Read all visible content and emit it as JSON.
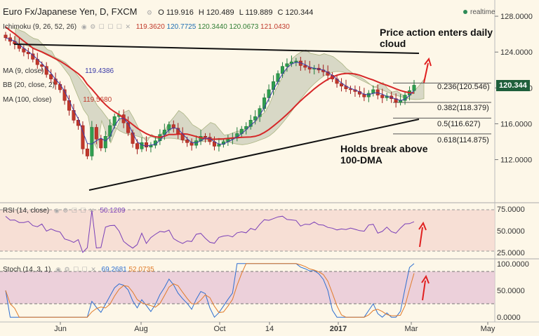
{
  "header": {
    "symbol": "Euro Fx/Japanese Yen, D, FXCM",
    "ohlc": [
      "119.916",
      "120.489",
      "119.889",
      "120.344"
    ],
    "realtime": "realtime"
  },
  "indicators": {
    "ichimoku": {
      "label": "Ichimoku (9, 26, 52, 26)",
      "values": [
        "119.3620",
        "120.7725",
        "120.3440",
        "120.0673",
        "121.0430"
      ]
    },
    "ma_fast": {
      "label": "MA (9, close)",
      "value": "119.4386"
    },
    "bb": {
      "label": "BB (20, close, 2)"
    },
    "ma_100": {
      "label": "MA (100, close)",
      "value": "119.5680"
    },
    "rsi": {
      "label": "RSI (14, close)",
      "value": "50.1209"
    },
    "stoch": {
      "label": "Stoch (14, 3, 1)",
      "k": "69.2681",
      "d": "52.0735"
    }
  },
  "annotations": {
    "top": [
      "Price action enters daily",
      "cloud"
    ],
    "bottom": [
      "Holds break above",
      "100-DMA"
    ]
  },
  "fib_levels": [
    {
      "label": "0.236(120.546)",
      "value": 120.546
    },
    {
      "label": "0.382(118.379)",
      "value": 118.379
    },
    {
      "label": "0.5(116.627)",
      "value": 116.627
    },
    {
      "label": "0.618(114.875)",
      "value": 114.875
    }
  ],
  "last_price": "120.344",
  "colors": {
    "ma100": "#d62728",
    "ma_fast": "#3a3aa8",
    "cloud": "#c9cbb8",
    "rsi": "#7a3fb8",
    "stoch_k": "#2f6fd1",
    "stoch_d": "#e07b2a",
    "up": "#1f7a3a",
    "down": "#a11b1b",
    "price_tag": "#1f5f3b",
    "arrow": "#e02020"
  },
  "chart_data": {
    "type": "candlestick",
    "x_ticks": [
      "Jun",
      "Aug",
      "Oct",
      "14",
      "2017",
      "Mar",
      "May"
    ],
    "price_axis": {
      "ticks": [
        "128.0000",
        "124.0000",
        "120.0000",
        "116.0000",
        "112.0000"
      ],
      "ylim": [
        108.6,
        128.4
      ]
    },
    "rsi_axis": {
      "ticks": [
        "75.0000",
        "50.0000",
        "25.0000"
      ],
      "ylim": [
        20,
        80
      ],
      "bands": [
        70,
        30
      ]
    },
    "stoch_axis": {
      "ticks": [
        "100.0000",
        "50.0000",
        "0.0000"
      ],
      "ylim": [
        -5,
        105
      ],
      "bands": [
        80,
        20
      ]
    },
    "close_series": [
      125.6,
      125.2,
      124.9,
      124.4,
      124.0,
      123.8,
      123.2,
      122.6,
      122.4,
      121.5,
      121.0,
      120.4,
      119.8,
      118.6,
      117.5,
      116.4,
      115.8,
      113.2,
      112.4,
      115.6,
      114.3,
      113.3,
      114.6,
      115.8,
      116.8,
      117.0,
      116.1,
      115.0,
      113.8,
      113.2,
      113.9,
      113.4,
      113.6,
      114.1,
      114.8,
      115.3,
      115.9,
      115.5,
      114.9,
      114.2,
      113.9,
      113.6,
      114.1,
      114.6,
      114.5,
      114.0,
      113.5,
      113.7,
      114.0,
      114.3,
      114.4,
      114.9,
      115.4,
      115.7,
      116.4,
      116.8,
      117.7,
      118.9,
      119.8,
      120.7,
      121.6,
      122.4,
      122.7,
      122.9,
      123.0,
      122.5,
      122.3,
      122.1,
      122.2,
      122.0,
      121.8,
      121.4,
      121.0,
      120.5,
      120.2,
      119.9,
      119.8,
      119.6,
      119.3,
      119.0,
      119.4,
      119.8,
      119.2,
      118.9,
      119.1,
      118.8,
      118.4,
      118.6,
      119.2,
      119.7,
      120.3
    ]
  }
}
